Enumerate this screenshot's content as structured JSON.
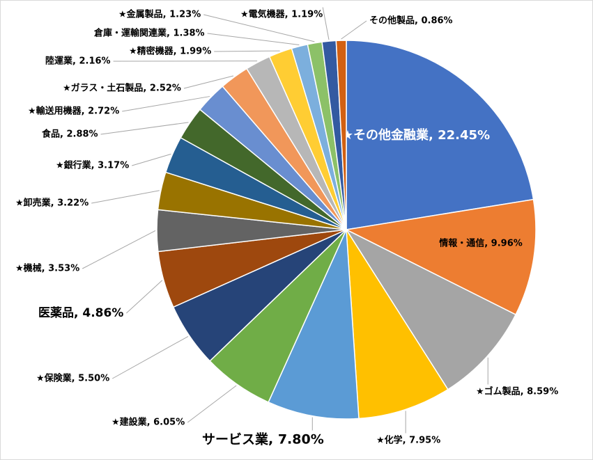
{
  "chart_data": {
    "type": "pie",
    "values": [
      22.45,
      9.96,
      8.59,
      7.95,
      7.8,
      6.05,
      5.5,
      4.86,
      3.53,
      3.22,
      3.17,
      2.88,
      2.72,
      2.52,
      2.16,
      1.99,
      1.38,
      1.23,
      1.19,
      0.86
    ],
    "value_labels": [
      "★その他金融業, 22.45%",
      "情報・通信, 9.96%",
      "★ゴム製品, 8.59%",
      "★化学, 7.95%",
      "サービス業, 7.80%",
      "★建設業, 6.05%",
      "★保険業, 5.50%",
      "医薬品, 4.86%",
      "★機械, 3.53%",
      "★卸売業, 3.22%",
      "★銀行業, 3.17%",
      "食品, 2.88%",
      "★輸送用機器, 2.72%",
      "★ガラス・土石製品, 2.52%",
      "陸運業, 2.16%",
      "★精密機器, 1.99%",
      "倉庫・運輸関連業, 1.38%",
      "★金属製品, 1.23%",
      "★電気機器, 1.19%",
      "その他製品, 0.86%"
    ],
    "colors": [
      "#4472c4",
      "#ed7d31",
      "#a5a5a5",
      "#ffc000",
      "#5b9bd5",
      "#70ad47",
      "#264478",
      "#9e480e",
      "#636363",
      "#997300",
      "#255e91",
      "#43682b",
      "#698ed0",
      "#f1975a",
      "#b7b7b7",
      "#ffcd33",
      "#7cafdd",
      "#8cc168",
      "#335aa1",
      "#d26012"
    ]
  }
}
